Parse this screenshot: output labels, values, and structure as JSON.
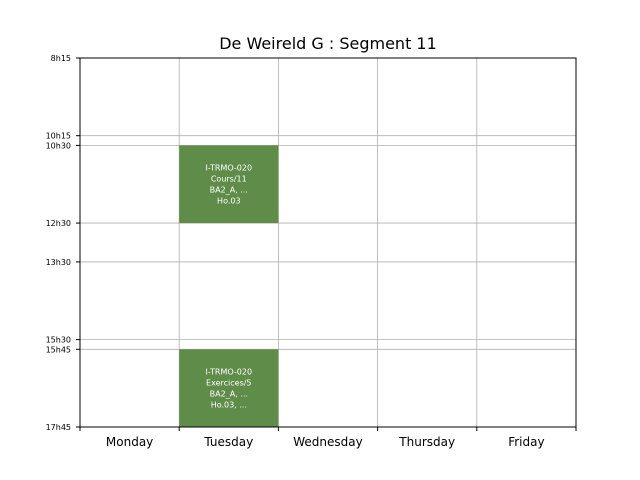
{
  "chart_data": {
    "type": "table",
    "title": "De Weireld G : Segment 11",
    "days": [
      "Monday",
      "Tuesday",
      "Wednesday",
      "Thursday",
      "Friday"
    ],
    "time_ticks": [
      "8h15",
      "10h15",
      "10h30",
      "12h30",
      "13h30",
      "15h30",
      "15h45",
      "17h45"
    ],
    "time_range": [
      "8h15",
      "17h45"
    ],
    "grid": true,
    "event_color": "#5f8c48",
    "events": [
      {
        "day": "Tuesday",
        "start": "10h30",
        "end": "12h30",
        "lines": [
          "I-TRMO-020",
          "Cours/11",
          "BA2_A, ...",
          "Ho.03"
        ]
      },
      {
        "day": "Tuesday",
        "start": "15h45",
        "end": "17h45",
        "lines": [
          "I-TRMO-020",
          "Exercices/5",
          "BA2_A, ...",
          "Ho.03, ..."
        ]
      }
    ]
  }
}
